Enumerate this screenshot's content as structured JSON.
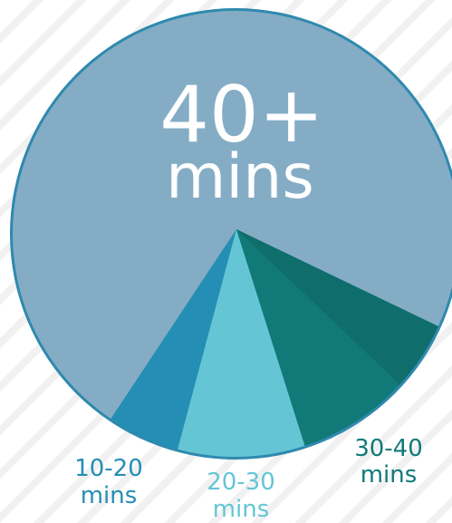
{
  "chart_data": {
    "type": "pie",
    "slices": [
      {
        "label_lines": [
          "40+",
          "mins"
        ],
        "value": 79,
        "color": "#84adc5"
      },
      {
        "label_lines": [
          "10-20",
          "mins"
        ],
        "value": 4,
        "color": "#258eb4"
      },
      {
        "label_lines": [
          "20-30",
          "mins"
        ],
        "value": 7,
        "color": "#64c6d5"
      },
      {
        "label_lines": [
          "30-40",
          "mins"
        ],
        "value": 10,
        "color": "#117a78",
        "secondary_color": "#0f6e6c"
      }
    ],
    "ring_color": "#2f89ae"
  }
}
